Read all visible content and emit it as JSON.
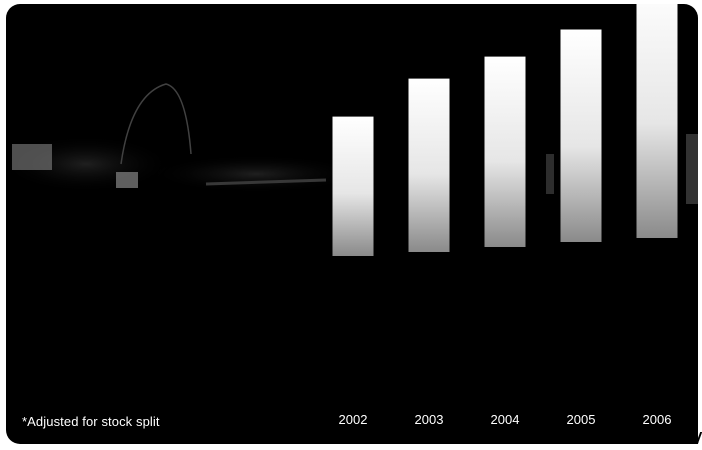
{
  "footnote": "*Adjusted for stock split",
  "colors": {
    "background": "#000000",
    "bar_top": "#ffffff",
    "bar_bottom": "#8a8a8a",
    "text": "#ffffff"
  },
  "chart_data": {
    "type": "bar",
    "title": "",
    "xlabel": "",
    "ylabel": "",
    "categories": [
      "2002",
      "2003",
      "2004",
      "2005",
      "2006"
    ],
    "series": [
      {
        "values": [
          82,
          102,
          112,
          125,
          150
        ]
      }
    ],
    "bar_base_offsets": [
      4,
      8,
      13,
      18,
      22
    ],
    "grid": false,
    "legend": "none"
  }
}
